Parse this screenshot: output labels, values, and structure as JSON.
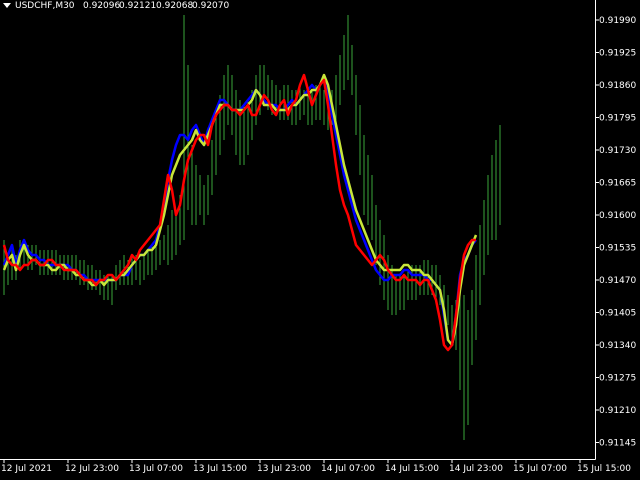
{
  "header": {
    "symbol": "USDCHF,M30",
    "open": "0.92096",
    "high": "0.92121",
    "low": "0.92068",
    "close": "0.92070",
    "menu_icon": "triangle-down-icon"
  },
  "colors": {
    "background": "#000000",
    "frame": "#ffffff",
    "bars": "#3aa63a",
    "ma_blue": "#0000ff",
    "ma_yellow": "#c8e63a",
    "ma_red": "#ff0000"
  },
  "chart_data": {
    "type": "line",
    "ylim": [
      0.91112,
      0.9203
    ],
    "y_ticks": [
      "0.91990",
      "0.91925",
      "0.91860",
      "0.91795",
      "0.91730",
      "0.91665",
      "0.91600",
      "0.91535",
      "0.91470",
      "0.91405",
      "0.91340",
      "0.91275",
      "0.91210",
      "0.91145"
    ],
    "x_ticks": [
      {
        "label": "12 Jul 2021",
        "index": 0
      },
      {
        "label": "12 Jul 23:00",
        "index": 16
      },
      {
        "label": "13 Jul 07:00",
        "index": 32
      },
      {
        "label": "13 Jul 15:00",
        "index": 48
      },
      {
        "label": "13 Jul 23:00",
        "index": 64
      },
      {
        "label": "14 Jul 07:00",
        "index": 80
      },
      {
        "label": "14 Jul 15:00",
        "index": 96
      },
      {
        "label": "14 Jul 23:00",
        "index": 112
      },
      {
        "label": "15 Jul 07:00",
        "index": 128
      },
      {
        "label": "15 Jul 15:00",
        "index": 144
      }
    ],
    "bars": [
      {
        "high": 0.9155,
        "low": 0.9144
      },
      {
        "high": 0.9152,
        "low": 0.9146
      },
      {
        "high": 0.9153,
        "low": 0.9147
      },
      {
        "high": 0.9152,
        "low": 0.9147
      },
      {
        "high": 0.9155,
        "low": 0.9149
      },
      {
        "high": 0.9155,
        "low": 0.915
      },
      {
        "high": 0.9154,
        "low": 0.9149
      },
      {
        "high": 0.9154,
        "low": 0.9149
      },
      {
        "high": 0.9154,
        "low": 0.915
      },
      {
        "high": 0.9153,
        "low": 0.9148
      },
      {
        "high": 0.9153,
        "low": 0.9148
      },
      {
        "high": 0.9153,
        "low": 0.9148
      },
      {
        "high": 0.9153,
        "low": 0.9148
      },
      {
        "high": 0.9153,
        "low": 0.9148
      },
      {
        "high": 0.9152,
        "low": 0.9148
      },
      {
        "high": 0.9152,
        "low": 0.9147
      },
      {
        "high": 0.9152,
        "low": 0.9147
      },
      {
        "high": 0.9152,
        "low": 0.9147
      },
      {
        "high": 0.9152,
        "low": 0.9147
      },
      {
        "high": 0.9151,
        "low": 0.9146
      },
      {
        "high": 0.9151,
        "low": 0.9146
      },
      {
        "high": 0.915,
        "low": 0.9145
      },
      {
        "high": 0.915,
        "low": 0.9145
      },
      {
        "high": 0.9149,
        "low": 0.9145
      },
      {
        "high": 0.9149,
        "low": 0.9144
      },
      {
        "high": 0.9148,
        "low": 0.9143
      },
      {
        "high": 0.9148,
        "low": 0.9143
      },
      {
        "high": 0.9148,
        "low": 0.9142
      },
      {
        "high": 0.915,
        "low": 0.9145
      },
      {
        "high": 0.9151,
        "low": 0.9146
      },
      {
        "high": 0.9152,
        "low": 0.9146
      },
      {
        "high": 0.9151,
        "low": 0.9146
      },
      {
        "high": 0.9152,
        "low": 0.9146
      },
      {
        "high": 0.9152,
        "low": 0.9147
      },
      {
        "high": 0.9151,
        "low": 0.9146
      },
      {
        "high": 0.9152,
        "low": 0.9147
      },
      {
        "high": 0.9153,
        "low": 0.9148
      },
      {
        "high": 0.9154,
        "low": 0.9148
      },
      {
        "high": 0.9155,
        "low": 0.9149
      },
      {
        "high": 0.9155,
        "low": 0.915
      },
      {
        "high": 0.9156,
        "low": 0.9151
      },
      {
        "high": 0.9158,
        "low": 0.915
      },
      {
        "high": 0.9161,
        "low": 0.9151
      },
      {
        "high": 0.916,
        "low": 0.9152
      },
      {
        "high": 0.9164,
        "low": 0.9154
      },
      {
        "high": 0.92,
        "low": 0.9155
      },
      {
        "high": 0.919,
        "low": 0.9161
      },
      {
        "high": 0.9174,
        "low": 0.9158
      },
      {
        "high": 0.917,
        "low": 0.9158
      },
      {
        "high": 0.9168,
        "low": 0.916
      },
      {
        "high": 0.9166,
        "low": 0.9158
      },
      {
        "high": 0.9168,
        "low": 0.916
      },
      {
        "high": 0.9175,
        "low": 0.9164
      },
      {
        "high": 0.918,
        "low": 0.9168
      },
      {
        "high": 0.9184,
        "low": 0.9172
      },
      {
        "high": 0.9188,
        "low": 0.9175
      },
      {
        "high": 0.919,
        "low": 0.9178
      },
      {
        "high": 0.9188,
        "low": 0.9176
      },
      {
        "high": 0.9185,
        "low": 0.9172
      },
      {
        "high": 0.9183,
        "low": 0.917
      },
      {
        "high": 0.9182,
        "low": 0.917
      },
      {
        "high": 0.9183,
        "low": 0.9172
      },
      {
        "high": 0.9185,
        "low": 0.9175
      },
      {
        "high": 0.9188,
        "low": 0.9178
      },
      {
        "high": 0.919,
        "low": 0.918
      },
      {
        "high": 0.919,
        "low": 0.9182
      },
      {
        "high": 0.9188,
        "low": 0.9181
      },
      {
        "high": 0.9187,
        "low": 0.918
      },
      {
        "high": 0.9186,
        "low": 0.918
      },
      {
        "high": 0.9185,
        "low": 0.9179
      },
      {
        "high": 0.9186,
        "low": 0.9179
      },
      {
        "high": 0.9186,
        "low": 0.9179
      },
      {
        "high": 0.9185,
        "low": 0.9178
      },
      {
        "high": 0.9185,
        "low": 0.9178
      },
      {
        "high": 0.9186,
        "low": 0.9179
      },
      {
        "high": 0.9185,
        "low": 0.918
      },
      {
        "high": 0.9184,
        "low": 0.9178
      },
      {
        "high": 0.9185,
        "low": 0.9178
      },
      {
        "high": 0.9186,
        "low": 0.9179
      },
      {
        "high": 0.9186,
        "low": 0.9179
      },
      {
        "high": 0.9185,
        "low": 0.9178
      },
      {
        "high": 0.9184,
        "low": 0.9177
      },
      {
        "high": 0.9185,
        "low": 0.9178
      },
      {
        "high": 0.9188,
        "low": 0.9179
      },
      {
        "high": 0.9192,
        "low": 0.9182
      },
      {
        "high": 0.9196,
        "low": 0.9185
      },
      {
        "high": 0.92,
        "low": 0.9187
      },
      {
        "high": 0.9194,
        "low": 0.9184
      },
      {
        "high": 0.9188,
        "low": 0.9176
      },
      {
        "high": 0.9182,
        "low": 0.9168
      },
      {
        "high": 0.9176,
        "low": 0.916
      },
      {
        "high": 0.9172,
        "low": 0.9158
      },
      {
        "high": 0.9168,
        "low": 0.9155
      },
      {
        "high": 0.9162,
        "low": 0.915
      },
      {
        "high": 0.9159,
        "low": 0.9146
      },
      {
        "high": 0.9156,
        "low": 0.9143
      },
      {
        "high": 0.9152,
        "low": 0.9141
      },
      {
        "high": 0.915,
        "low": 0.914
      },
      {
        "high": 0.9148,
        "low": 0.914
      },
      {
        "high": 0.9148,
        "low": 0.9141
      },
      {
        "high": 0.9148,
        "low": 0.9141
      },
      {
        "high": 0.9149,
        "low": 0.9143
      },
      {
        "high": 0.915,
        "low": 0.9143
      },
      {
        "high": 0.915,
        "low": 0.9143
      },
      {
        "high": 0.915,
        "low": 0.9144
      },
      {
        "high": 0.9151,
        "low": 0.9144
      },
      {
        "high": 0.9151,
        "low": 0.9144
      },
      {
        "high": 0.915,
        "low": 0.9144
      },
      {
        "high": 0.915,
        "low": 0.9143
      },
      {
        "high": 0.9148,
        "low": 0.9142
      },
      {
        "high": 0.9146,
        "low": 0.914
      },
      {
        "high": 0.9144,
        "low": 0.9138
      },
      {
        "high": 0.9142,
        "low": 0.9135
      },
      {
        "high": 0.9143,
        "low": 0.9133
      },
      {
        "high": 0.9146,
        "low": 0.9125
      },
      {
        "high": 0.9144,
        "low": 0.9115
      },
      {
        "high": 0.9141,
        "low": 0.9118
      },
      {
        "high": 0.9145,
        "low": 0.913
      },
      {
        "high": 0.9152,
        "low": 0.9135
      },
      {
        "high": 0.9158,
        "low": 0.9142
      },
      {
        "high": 0.9163,
        "low": 0.9148
      },
      {
        "high": 0.9168,
        "low": 0.9152
      },
      {
        "high": 0.9172,
        "low": 0.9155
      },
      {
        "high": 0.9175,
        "low": 0.9155
      },
      {
        "high": 0.9178,
        "low": 0.9158
      }
    ],
    "series": [
      {
        "name": "",
        "color_key": "ma_blue",
        "values": [
          0.915,
          0.9152,
          0.9154,
          0.915,
          0.9153,
          0.9155,
          0.9153,
          0.9152,
          0.9152,
          0.9151,
          0.9151,
          0.915,
          0.915,
          0.915,
          0.915,
          0.915,
          0.915,
          0.9149,
          0.9149,
          0.9148,
          0.9148,
          0.9147,
          0.9147,
          0.9147,
          0.9147,
          0.9147,
          0.9147,
          0.9147,
          0.9147,
          0.9148,
          0.9148,
          0.9148,
          0.915,
          0.9151,
          0.9152,
          0.9152,
          0.9153,
          0.9154,
          0.9155,
          0.9158,
          0.9162,
          0.9167,
          0.9171,
          0.9174,
          0.9176,
          0.9176,
          0.9175,
          0.9177,
          0.9178,
          0.9176,
          0.9174,
          0.9177,
          0.9179,
          0.9181,
          0.9183,
          0.9183,
          0.9182,
          0.9181,
          0.9181,
          0.9181,
          0.9182,
          0.9183,
          0.9184,
          0.9185,
          0.9184,
          0.9183,
          0.9182,
          0.9182,
          0.9182,
          0.9181,
          0.9181,
          0.9182,
          0.9183,
          0.9182,
          0.9183,
          0.9184,
          0.9185,
          0.9186,
          0.9185,
          0.9186,
          0.9187,
          0.9184,
          0.918,
          0.9176,
          0.9172,
          0.9168,
          0.9165,
          0.9162,
          0.9159,
          0.9157,
          0.9155,
          0.9153,
          0.9151,
          0.9149,
          0.9148,
          0.9147,
          0.9147,
          0.9148,
          0.9148,
          0.9148,
          0.9149,
          0.9149,
          0.9148,
          0.9148,
          0.9148,
          0.9148,
          0.9147,
          0.9147,
          0.9146,
          0.9145,
          0.914,
          0.9135,
          0.9134,
          0.914,
          0.9148,
          0.9151,
          0.9152,
          0.9154,
          0.9155
        ]
      },
      {
        "name": "",
        "color_key": "ma_yellow",
        "values": [
          0.9149,
          0.9151,
          0.9152,
          0.9149,
          0.9152,
          0.9154,
          0.9152,
          0.9151,
          0.9151,
          0.915,
          0.915,
          0.915,
          0.9149,
          0.9149,
          0.915,
          0.915,
          0.9149,
          0.9149,
          0.9148,
          0.9148,
          0.9147,
          0.9147,
          0.9146,
          0.9146,
          0.9147,
          0.9146,
          0.9147,
          0.9147,
          0.9147,
          0.9148,
          0.9148,
          0.9149,
          0.915,
          0.9151,
          0.9152,
          0.9152,
          0.9153,
          0.9153,
          0.9154,
          0.9157,
          0.916,
          0.9164,
          0.9168,
          0.917,
          0.9172,
          0.9173,
          0.9174,
          0.9175,
          0.9177,
          0.9175,
          0.9174,
          0.9176,
          0.9178,
          0.918,
          0.9182,
          0.9182,
          0.9182,
          0.9181,
          0.9181,
          0.9181,
          0.9181,
          0.9182,
          0.9183,
          0.9185,
          0.9184,
          0.9182,
          0.9182,
          0.9182,
          0.9181,
          0.9181,
          0.9181,
          0.9181,
          0.9182,
          0.9182,
          0.9183,
          0.9184,
          0.9184,
          0.9185,
          0.9185,
          0.9186,
          0.9188,
          0.9186,
          0.9182,
          0.9178,
          0.9174,
          0.917,
          0.9167,
          0.9164,
          0.9161,
          0.9159,
          0.9157,
          0.9155,
          0.9153,
          0.9151,
          0.915,
          0.9149,
          0.9149,
          0.9149,
          0.9149,
          0.9149,
          0.915,
          0.915,
          0.9149,
          0.9149,
          0.9149,
          0.9148,
          0.9148,
          0.9147,
          0.9146,
          0.9145,
          0.9141,
          0.9135,
          0.9134,
          0.9138,
          0.9145,
          0.915,
          0.9152,
          0.9154,
          0.9156
        ]
      },
      {
        "name": "",
        "color_key": "ma_red",
        "values": [
          0.9154,
          0.9151,
          0.915,
          0.915,
          0.9149,
          0.915,
          0.915,
          0.9151,
          0.9151,
          0.915,
          0.915,
          0.9151,
          0.9151,
          0.915,
          0.915,
          0.9149,
          0.9149,
          0.9149,
          0.9149,
          0.9148,
          0.9147,
          0.9147,
          0.9147,
          0.9146,
          0.9147,
          0.9147,
          0.9148,
          0.9148,
          0.9147,
          0.9148,
          0.9149,
          0.915,
          0.9152,
          0.9151,
          0.9153,
          0.9154,
          0.9155,
          0.9156,
          0.9157,
          0.9158,
          0.9163,
          0.9168,
          0.9165,
          0.916,
          0.9162,
          0.9167,
          0.9171,
          0.9173,
          0.9175,
          0.9176,
          0.9176,
          0.9174,
          0.9178,
          0.918,
          0.9181,
          0.9182,
          0.9182,
          0.9181,
          0.9181,
          0.918,
          0.9181,
          0.9182,
          0.918,
          0.918,
          0.9182,
          0.9184,
          0.9183,
          0.9181,
          0.918,
          0.9182,
          0.9183,
          0.918,
          0.9182,
          0.9183,
          0.9186,
          0.9188,
          0.9185,
          0.9182,
          0.9184,
          0.9186,
          0.9187,
          0.9182,
          0.9176,
          0.917,
          0.9165,
          0.9162,
          0.916,
          0.9157,
          0.9154,
          0.9153,
          0.9152,
          0.9151,
          0.915,
          0.9151,
          0.9152,
          0.9151,
          0.9149,
          0.9148,
          0.9147,
          0.9147,
          0.9148,
          0.9147,
          0.9147,
          0.9147,
          0.9146,
          0.9147,
          0.9147,
          0.9145,
          0.9143,
          0.9139,
          0.9134,
          0.9133,
          0.9134,
          0.914,
          0.9147,
          0.9152,
          0.9154,
          0.9155,
          0.9155
        ]
      }
    ]
  }
}
